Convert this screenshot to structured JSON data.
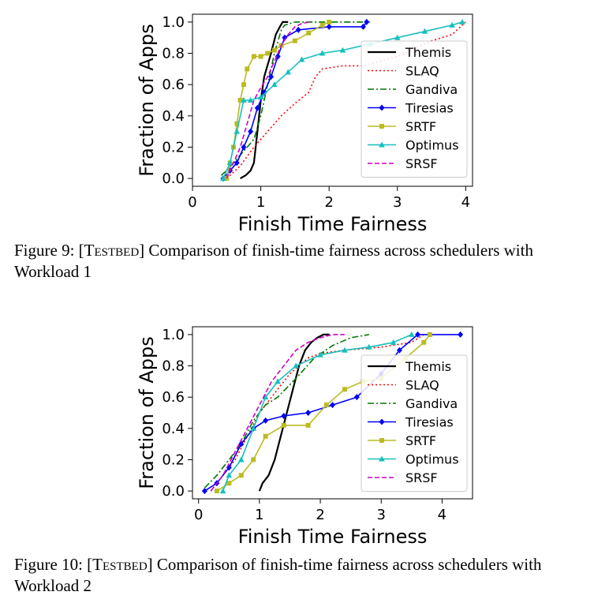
{
  "figure9": {
    "caption_prefix": "Figure 9: [",
    "caption_tag": "Testbed",
    "caption_rest": "] Comparison of finish-time fairness across schedulers with Workload 1"
  },
  "figure10": {
    "caption_prefix": "Figure 10: [",
    "caption_tag": "Testbed",
    "caption_rest": "] Comparison of finish-time fairness across schedulers with Workload 2"
  },
  "chart_data": [
    {
      "type": "line",
      "xlabel": "Finish Time Fairness",
      "ylabel": "Fraction of Apps",
      "xlim": [
        0,
        4.1
      ],
      "ylim": [
        -0.05,
        1.05
      ],
      "xticks": [
        0,
        1,
        2,
        3,
        4
      ],
      "yticks": [
        0.0,
        0.2,
        0.4,
        0.6,
        0.8,
        1.0
      ],
      "grid": false,
      "legend": "right",
      "series": [
        {
          "name": "Themis",
          "color": "#000000",
          "dash": "solid",
          "marker": "none",
          "x": [
            0.7,
            0.78,
            0.85,
            0.9,
            0.95,
            1.0,
            1.05,
            1.15,
            1.22,
            1.28,
            1.32,
            1.35,
            1.4
          ],
          "y": [
            0.0,
            0.02,
            0.05,
            0.1,
            0.3,
            0.5,
            0.65,
            0.8,
            0.92,
            0.97,
            1.0,
            1.0,
            1.0
          ]
        },
        {
          "name": "SLAQ",
          "color": "#ff0000",
          "dash": "dot",
          "marker": "none",
          "x": [
            0.5,
            0.7,
            0.9,
            1.1,
            1.3,
            1.5,
            1.7,
            1.8,
            1.9,
            2.2,
            2.5,
            3.0,
            3.5,
            3.8,
            4.0
          ],
          "y": [
            0.0,
            0.08,
            0.2,
            0.3,
            0.4,
            0.48,
            0.55,
            0.65,
            0.7,
            0.72,
            0.72,
            0.78,
            0.88,
            0.92,
            1.0
          ]
        },
        {
          "name": "Gandiva",
          "color": "#007700",
          "dash": "dashdot",
          "marker": "none",
          "x": [
            0.42,
            0.5,
            0.6,
            0.7,
            0.8,
            0.9,
            1.0,
            1.1,
            1.2,
            1.3,
            1.35,
            1.5,
            2.0,
            2.6
          ],
          "y": [
            0.02,
            0.05,
            0.1,
            0.15,
            0.2,
            0.25,
            0.4,
            0.6,
            0.8,
            0.95,
            0.98,
            1.0,
            1.0,
            1.0
          ]
        },
        {
          "name": "Tiresias",
          "color": "#0000ff",
          "dash": "solid",
          "marker": "diamond",
          "x": [
            0.45,
            0.55,
            0.65,
            0.75,
            0.85,
            0.95,
            1.05,
            1.15,
            1.25,
            1.35,
            1.55,
            2.0,
            2.5,
            2.55
          ],
          "y": [
            0.0,
            0.05,
            0.1,
            0.2,
            0.3,
            0.45,
            0.55,
            0.65,
            0.78,
            0.9,
            0.95,
            0.97,
            0.97,
            1.0
          ]
        },
        {
          "name": "SRTF",
          "color": "#bbbb22",
          "dash": "solid",
          "marker": "square",
          "x": [
            0.5,
            0.55,
            0.6,
            0.65,
            0.7,
            0.75,
            0.8,
            0.9,
            1.0,
            1.1,
            1.2,
            1.3,
            1.5,
            1.7,
            1.9,
            2.0
          ],
          "y": [
            0.0,
            0.1,
            0.2,
            0.35,
            0.5,
            0.6,
            0.7,
            0.78,
            0.78,
            0.8,
            0.82,
            0.85,
            0.88,
            0.93,
            0.98,
            1.0
          ]
        },
        {
          "name": "Optimus",
          "color": "#17bfbf",
          "dash": "solid",
          "marker": "triangle",
          "x": [
            0.45,
            0.55,
            0.65,
            0.75,
            0.85,
            1.0,
            1.2,
            1.4,
            1.6,
            1.9,
            2.2,
            2.6,
            3.0,
            3.4,
            3.8,
            3.95
          ],
          "y": [
            0.0,
            0.1,
            0.3,
            0.5,
            0.5,
            0.52,
            0.6,
            0.68,
            0.76,
            0.8,
            0.82,
            0.86,
            0.9,
            0.94,
            0.98,
            1.0
          ]
        },
        {
          "name": "SRSF",
          "color": "#cc00cc",
          "dash": "dash",
          "marker": "none",
          "x": [
            0.5,
            0.6,
            0.7,
            0.8,
            0.9,
            1.0,
            1.1,
            1.2,
            1.3,
            1.4,
            1.5,
            1.6,
            1.7
          ],
          "y": [
            0.0,
            0.1,
            0.2,
            0.35,
            0.5,
            0.58,
            0.65,
            0.75,
            0.85,
            0.92,
            0.97,
            0.99,
            1.0
          ]
        }
      ]
    },
    {
      "type": "line",
      "xlabel": "Finish Time Fairness",
      "ylabel": "Fraction of Apps",
      "xlim": [
        -0.1,
        4.5
      ],
      "ylim": [
        -0.05,
        1.05
      ],
      "xticks": [
        0,
        1,
        2,
        3,
        4
      ],
      "yticks": [
        0.0,
        0.2,
        0.4,
        0.6,
        0.8,
        1.0
      ],
      "grid": false,
      "legend": "right",
      "series": [
        {
          "name": "Themis",
          "color": "#000000",
          "dash": "solid",
          "marker": "none",
          "x": [
            1.0,
            1.05,
            1.15,
            1.25,
            1.35,
            1.45,
            1.55,
            1.65,
            1.75,
            1.85,
            1.95,
            2.05,
            2.15
          ],
          "y": [
            0.0,
            0.05,
            0.1,
            0.2,
            0.35,
            0.5,
            0.65,
            0.8,
            0.9,
            0.95,
            0.98,
            1.0,
            1.0
          ]
        },
        {
          "name": "SLAQ",
          "color": "#ff0000",
          "dash": "dot",
          "marker": "none",
          "x": [
            0.2,
            0.4,
            0.6,
            0.8,
            1.0,
            1.2,
            1.5,
            1.8,
            2.0,
            2.4,
            3.0,
            3.5,
            3.7
          ],
          "y": [
            0.0,
            0.1,
            0.2,
            0.35,
            0.5,
            0.6,
            0.75,
            0.85,
            0.88,
            0.9,
            0.92,
            0.95,
            1.0
          ]
        },
        {
          "name": "Gandiva",
          "color": "#007700",
          "dash": "dashdot",
          "marker": "none",
          "x": [
            0.1,
            0.3,
            0.5,
            0.7,
            0.9,
            1.1,
            1.3,
            1.6,
            1.9,
            2.2,
            2.5,
            2.8
          ],
          "y": [
            0.02,
            0.1,
            0.2,
            0.3,
            0.45,
            0.55,
            0.6,
            0.72,
            0.85,
            0.93,
            0.98,
            1.0
          ]
        },
        {
          "name": "Tiresias",
          "color": "#0000ff",
          "dash": "solid",
          "marker": "diamond",
          "x": [
            0.1,
            0.3,
            0.5,
            0.7,
            0.9,
            1.1,
            1.4,
            1.8,
            2.2,
            2.6,
            3.0,
            3.3,
            3.6,
            4.3
          ],
          "y": [
            0.0,
            0.05,
            0.15,
            0.3,
            0.4,
            0.45,
            0.48,
            0.5,
            0.55,
            0.6,
            0.75,
            0.9,
            1.0,
            1.0
          ]
        },
        {
          "name": "SRTF",
          "color": "#bbbb22",
          "dash": "solid",
          "marker": "square",
          "x": [
            0.3,
            0.5,
            0.7,
            0.9,
            1.1,
            1.4,
            1.8,
            2.1,
            2.4,
            2.7,
            3.0,
            3.4,
            3.7,
            3.8
          ],
          "y": [
            0.0,
            0.05,
            0.1,
            0.2,
            0.35,
            0.42,
            0.42,
            0.55,
            0.65,
            0.7,
            0.72,
            0.85,
            0.95,
            1.0
          ]
        },
        {
          "name": "Optimus",
          "color": "#17bfbf",
          "dash": "solid",
          "marker": "triangle",
          "x": [
            0.4,
            0.5,
            0.7,
            0.9,
            1.1,
            1.3,
            1.6,
            2.0,
            2.4,
            2.8,
            3.2,
            3.5
          ],
          "y": [
            0.0,
            0.1,
            0.2,
            0.4,
            0.6,
            0.7,
            0.8,
            0.87,
            0.9,
            0.92,
            0.95,
            1.0
          ]
        },
        {
          "name": "SRSF",
          "color": "#cc00cc",
          "dash": "dash",
          "marker": "none",
          "x": [
            0.2,
            0.4,
            0.6,
            0.8,
            1.0,
            1.2,
            1.4,
            1.6,
            1.8,
            2.0,
            2.2,
            2.4
          ],
          "y": [
            0.0,
            0.1,
            0.25,
            0.4,
            0.55,
            0.7,
            0.8,
            0.9,
            0.95,
            0.98,
            1.0,
            1.0
          ]
        }
      ]
    }
  ]
}
